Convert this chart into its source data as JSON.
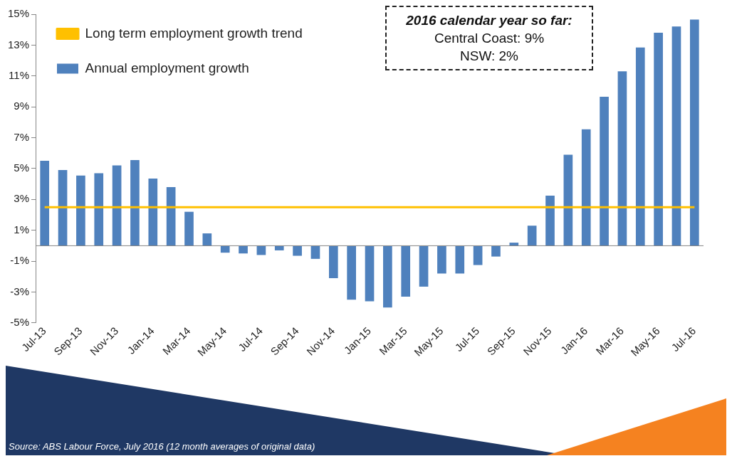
{
  "chart_data": {
    "type": "bar",
    "categories": [
      "Jul-13",
      null,
      "Sep-13",
      null,
      "Nov-13",
      null,
      "Jan-14",
      null,
      "Mar-14",
      null,
      "May-14",
      null,
      "Jul-14",
      null,
      "Sep-14",
      null,
      "Nov-14",
      null,
      "Jan-15",
      null,
      "Mar-15",
      null,
      "May-15",
      null,
      "Jul-15",
      null,
      "Sep-15",
      null,
      "Nov-15",
      null,
      "Jan-16",
      null,
      "Mar-16",
      null,
      "May-16",
      null,
      "Jul-16"
    ],
    "series": [
      {
        "name": "Annual employment growth",
        "color": "#4f81bd",
        "values": [
          5.5,
          4.9,
          4.55,
          4.7,
          5.2,
          5.55,
          4.35,
          3.8,
          2.2,
          0.8,
          -0.45,
          -0.5,
          -0.6,
          -0.3,
          -0.65,
          -0.85,
          -2.1,
          -3.5,
          -3.6,
          -4.0,
          -3.3,
          -2.65,
          -1.8,
          -1.8,
          -1.25,
          -0.7,
          0.2,
          1.3,
          3.25,
          5.9,
          7.55,
          9.65,
          11.3,
          12.85,
          13.8,
          14.2,
          14.65
        ]
      },
      {
        "name": "Long term employment growth trend",
        "type": "line",
        "color": "#ffc000",
        "values": [
          2.5,
          2.5,
          2.5,
          2.5,
          2.5,
          2.5,
          2.5,
          2.5,
          2.5,
          2.5,
          2.5,
          2.5,
          2.5,
          2.5,
          2.5,
          2.5,
          2.5,
          2.5,
          2.5,
          2.5,
          2.5,
          2.5,
          2.5,
          2.5,
          2.5,
          2.5,
          2.5,
          2.5,
          2.5,
          2.5,
          2.5,
          2.5,
          2.5,
          2.5,
          2.5,
          2.5,
          2.5
        ]
      }
    ],
    "ylim": [
      -5,
      15
    ],
    "yticks": [
      {
        "value": -5,
        "label": "-5%"
      },
      {
        "value": -3,
        "label": "-3%"
      },
      {
        "value": -1,
        "label": "-1%"
      },
      {
        "value": 1,
        "label": "1%"
      },
      {
        "value": 3,
        "label": "3%"
      },
      {
        "value": 5,
        "label": "5%"
      },
      {
        "value": 7,
        "label": "7%"
      },
      {
        "value": 9,
        "label": "9%"
      },
      {
        "value": 11,
        "label": "11%"
      },
      {
        "value": 13,
        "label": "13%"
      },
      {
        "value": 15,
        "label": "15%"
      }
    ],
    "grid": false,
    "legend": "top left",
    "marker": "none",
    "annotations": [
      "2016 calendar year so far:",
      "Central Coast: 9%",
      "NSW: 2%",
      "Source: ABS Labour Force, July 2016 (12 month averages of original data)"
    ]
  }
}
